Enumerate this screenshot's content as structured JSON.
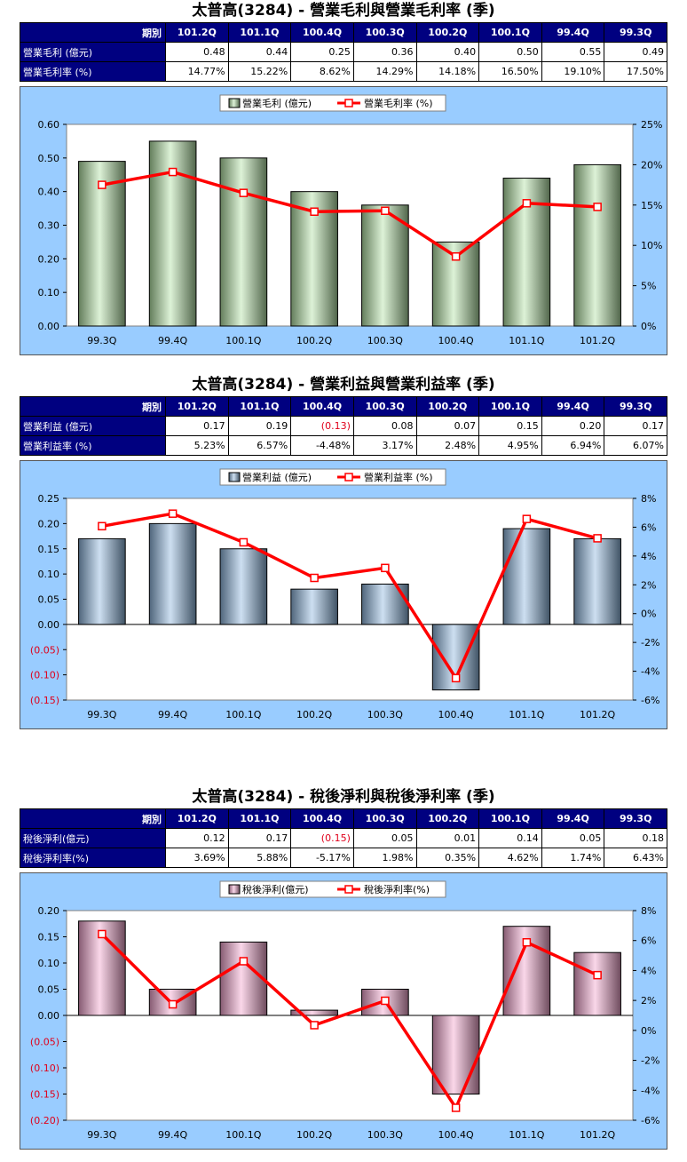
{
  "charts": [
    {
      "title": "太普高(3284) - 營業毛利與營業毛利率 (季)",
      "table": {
        "header": [
          "期別",
          "101.2Q",
          "101.1Q",
          "100.4Q",
          "100.3Q",
          "100.2Q",
          "100.1Q",
          "99.4Q",
          "99.3Q"
        ],
        "rows": [
          {
            "label": "營業毛利 (億元)",
            "cells": [
              "0.48",
              "0.44",
              "0.25",
              "0.36",
              "0.40",
              "0.50",
              "0.55",
              "0.49"
            ]
          },
          {
            "label": "營業毛利率 (%)",
            "cells": [
              "14.77%",
              "15.22%",
              "8.62%",
              "14.29%",
              "14.18%",
              "16.50%",
              "19.10%",
              "17.50%"
            ]
          }
        ]
      },
      "legend": {
        "bar": "營業毛利 (億元)",
        "line": "營業毛利率 (%)"
      }
    },
    {
      "title": "太普高(3284) - 營業利益與營業利益率 (季)",
      "table": {
        "header": [
          "期別",
          "101.2Q",
          "101.1Q",
          "100.4Q",
          "100.3Q",
          "100.2Q",
          "100.1Q",
          "99.4Q",
          "99.3Q"
        ],
        "rows": [
          {
            "label": "營業利益 (億元)",
            "cells": [
              "0.17",
              "0.19",
              "(0.13)",
              "0.08",
              "0.07",
              "0.15",
              "0.20",
              "0.17"
            ]
          },
          {
            "label": "營業利益率 (%)",
            "cells": [
              "5.23%",
              "6.57%",
              "-4.48%",
              "3.17%",
              "2.48%",
              "4.95%",
              "6.94%",
              "6.07%"
            ]
          }
        ]
      },
      "legend": {
        "bar": "營業利益 (億元)",
        "line": "營業利益率 (%)"
      }
    },
    {
      "title": "太普高(3284) - 稅後淨利與稅後淨利率 (季)",
      "table": {
        "header": [
          "期別",
          "101.2Q",
          "101.1Q",
          "100.4Q",
          "100.3Q",
          "100.2Q",
          "100.1Q",
          "99.4Q",
          "99.3Q"
        ],
        "rows": [
          {
            "label": "稅後淨利(億元)",
            "cells": [
              "0.12",
              "0.17",
              "(0.15)",
              "0.05",
              "0.01",
              "0.14",
              "0.05",
              "0.18"
            ]
          },
          {
            "label": "稅後淨利率(%)",
            "cells": [
              "3.69%",
              "5.88%",
              "-5.17%",
              "1.98%",
              "0.35%",
              "4.62%",
              "1.74%",
              "6.43%"
            ]
          }
        ]
      },
      "legend": {
        "bar": "稅後淨利(億元)",
        "line": "稅後淨利率(%)"
      }
    }
  ],
  "chart_data": [
    {
      "type": "bar",
      "categories": [
        "99.3Q",
        "99.4Q",
        "100.1Q",
        "100.2Q",
        "100.3Q",
        "100.4Q",
        "101.1Q",
        "101.2Q"
      ],
      "series": [
        {
          "name": "營業毛利 (億元)",
          "type": "bar",
          "axis": "left",
          "values": [
            0.49,
            0.55,
            0.5,
            0.4,
            0.36,
            0.25,
            0.44,
            0.48
          ]
        },
        {
          "name": "營業毛利率 (%)",
          "type": "line",
          "axis": "right",
          "values": [
            17.5,
            19.1,
            16.5,
            14.18,
            14.29,
            8.62,
            15.22,
            14.77
          ]
        }
      ],
      "ylim": [
        0,
        0.6
      ],
      "yticks": [
        "0.00",
        "0.10",
        "0.20",
        "0.30",
        "0.40",
        "0.50",
        "0.60"
      ],
      "y2lim": [
        0,
        25
      ],
      "y2ticks": [
        "0%",
        "5%",
        "10%",
        "15%",
        "20%",
        "25%"
      ],
      "legend_position": "top-center",
      "bar_color": "#b4e3a6",
      "line_color": "#ff0000"
    },
    {
      "type": "bar",
      "categories": [
        "99.3Q",
        "99.4Q",
        "100.1Q",
        "100.2Q",
        "100.3Q",
        "100.4Q",
        "101.1Q",
        "101.2Q"
      ],
      "series": [
        {
          "name": "營業利益 (億元)",
          "type": "bar",
          "axis": "left",
          "values": [
            0.17,
            0.2,
            0.15,
            0.07,
            0.08,
            -0.13,
            0.19,
            0.17
          ]
        },
        {
          "name": "營業利益率 (%)",
          "type": "line",
          "axis": "right",
          "values": [
            6.07,
            6.94,
            4.95,
            2.48,
            3.17,
            -4.48,
            6.57,
            5.23
          ]
        }
      ],
      "ylim": [
        -0.15,
        0.25
      ],
      "yticks": [
        "(0.15)",
        "(0.10)",
        "(0.05)",
        "0.00",
        "0.05",
        "0.10",
        "0.15",
        "0.20",
        "0.25"
      ],
      "y2lim": [
        -6,
        8
      ],
      "y2ticks": [
        "-6%",
        "-4%",
        "-2%",
        "0%",
        "2%",
        "4%",
        "6%",
        "8%"
      ],
      "legend_position": "top-center",
      "bar_color": "#8fb8e0",
      "line_color": "#ff0000"
    },
    {
      "type": "bar",
      "categories": [
        "99.3Q",
        "99.4Q",
        "100.1Q",
        "100.2Q",
        "100.3Q",
        "100.4Q",
        "101.1Q",
        "101.2Q"
      ],
      "series": [
        {
          "name": "稅後淨利(億元)",
          "type": "bar",
          "axis": "left",
          "values": [
            0.18,
            0.05,
            0.14,
            0.01,
            0.05,
            -0.15,
            0.17,
            0.12
          ]
        },
        {
          "name": "稅後淨利率(%)",
          "type": "line",
          "axis": "right",
          "values": [
            6.43,
            1.74,
            4.62,
            0.35,
            1.98,
            -5.17,
            5.88,
            3.69
          ]
        }
      ],
      "ylim": [
        -0.2,
        0.2
      ],
      "yticks": [
        "(0.20)",
        "(0.15)",
        "(0.10)",
        "(0.05)",
        "0.00",
        "0.05",
        "0.10",
        "0.15",
        "0.20"
      ],
      "y2lim": [
        -6,
        8
      ],
      "y2ticks": [
        "-6%",
        "-4%",
        "-2%",
        "0%",
        "2%",
        "4%",
        "6%",
        "8%"
      ],
      "legend_position": "top-center",
      "bar_color": "#f4a6cf",
      "line_color": "#ff0000"
    }
  ]
}
